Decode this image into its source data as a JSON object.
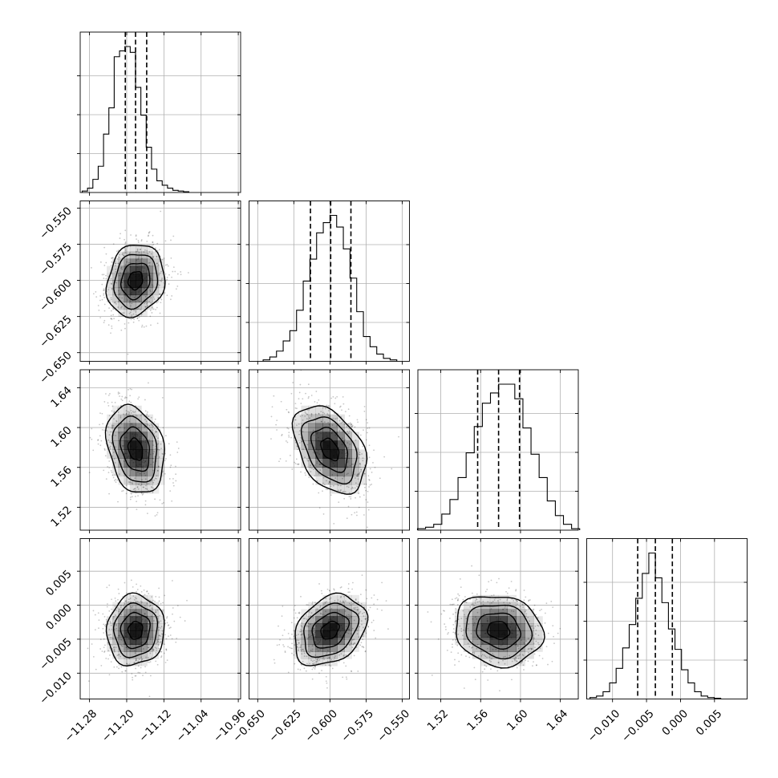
{
  "chart_data": {
    "type": "corner",
    "n_params": 4,
    "grid": true,
    "params": [
      {
        "range": [
          -11.3,
          -10.955
        ],
        "ticks": [
          -11.28,
          -11.2,
          -11.12,
          -11.04,
          -10.96
        ],
        "tick_labels": [
          "−11.28",
          "−11.20",
          "−11.12",
          "−11.04",
          "−10.96"
        ],
        "mean": -11.181,
        "sd": 0.031,
        "quantiles": [
          -11.203,
          -11.181,
          -11.157
        ],
        "hist": [
          1,
          3,
          9,
          18,
          40,
          58,
          93,
          97,
          100,
          96,
          72,
          53,
          31,
          16,
          8,
          5,
          3,
          1.5,
          1,
          0.5
        ]
      },
      {
        "range": [
          -0.656,
          -0.545
        ],
        "ticks": [
          -0.65,
          -0.625,
          -0.6,
          -0.575,
          -0.55
        ],
        "tick_labels": [
          "−0.650",
          "−0.625",
          "−0.600",
          "−0.575",
          "−0.550"
        ],
        "mean": -0.6,
        "sd": 0.0125,
        "quantiles": [
          -0.6135,
          -0.5995,
          -0.5855
        ],
        "hist": [
          1,
          3,
          7,
          14,
          21,
          35,
          55,
          70,
          88,
          95,
          100,
          92,
          77,
          57,
          34,
          17,
          10,
          5,
          2,
          1
        ]
      },
      {
        "range": [
          1.497,
          1.658
        ],
        "ticks": [
          1.52,
          1.56,
          1.6,
          1.64
        ],
        "tick_labels": [
          "1.52",
          "1.56",
          "1.60",
          "1.64"
        ],
        "mean": 1.578,
        "sd": 0.022,
        "quantiles": [
          1.557,
          1.578,
          1.599
        ],
        "hist": [
          1,
          2,
          4,
          11,
          21,
          36,
          53,
          71,
          87,
          94,
          100,
          100,
          90,
          70,
          52,
          36,
          20,
          10,
          4,
          1
        ]
      },
      {
        "range": [
          -0.0138,
          0.0098
        ],
        "ticks": [
          -0.01,
          -0.005,
          0.0,
          0.005
        ],
        "tick_labels": [
          "−0.010",
          "−0.005",
          "0.000",
          "0.005"
        ],
        "mean": -0.0037,
        "sd": 0.0026,
        "quantiles": [
          -0.0063,
          -0.0037,
          -0.0012
        ],
        "hist": [
          1,
          2,
          5,
          11,
          21,
          35,
          51,
          69,
          86,
          100,
          83,
          66,
          48,
          34,
          20,
          11,
          5,
          2,
          1,
          0.5
        ]
      }
    ],
    "correlations": [
      {
        "row": 1,
        "col": 0,
        "rho": 0.15
      },
      {
        "row": 2,
        "col": 0,
        "rho": -0.25
      },
      {
        "row": 2,
        "col": 1,
        "rho": -0.4
      },
      {
        "row": 3,
        "col": 0,
        "rho": 0.05
      },
      {
        "row": 3,
        "col": 1,
        "rho": 0.3
      },
      {
        "row": 3,
        "col": 2,
        "rho": -0.12
      }
    ],
    "contour_levels_sigma": [
      0.5,
      1.0,
      1.5,
      2.0
    ],
    "colors": {
      "density": "#000000",
      "lines": "#000000",
      "grid": "#b0b0b0"
    }
  }
}
